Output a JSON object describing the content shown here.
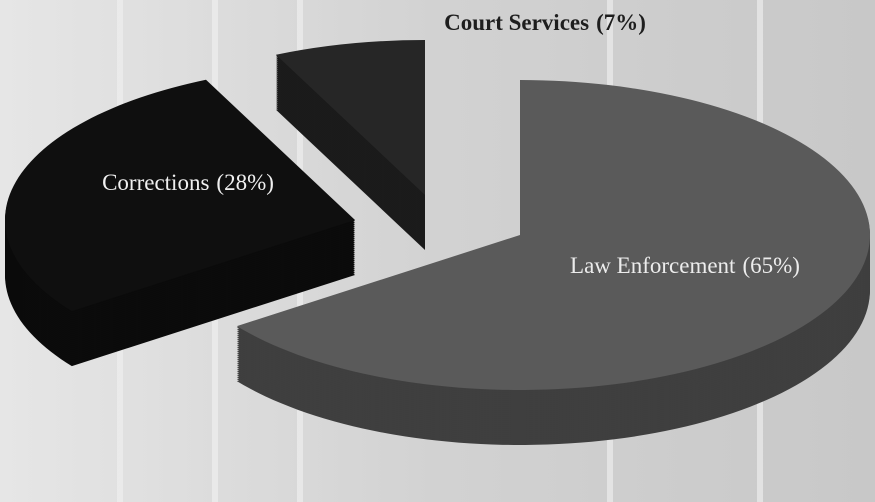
{
  "chart_data": {
    "type": "pie",
    "categories": [
      "Law Enforcement",
      "Corrections",
      "Court Services"
    ],
    "values": [
      65,
      28,
      7
    ],
    "value_labels": [
      "(65%)",
      "(28%)",
      "(7%)"
    ],
    "colors": [
      "#5a5a5a",
      "#0f0f0f",
      "#262626"
    ]
  }
}
